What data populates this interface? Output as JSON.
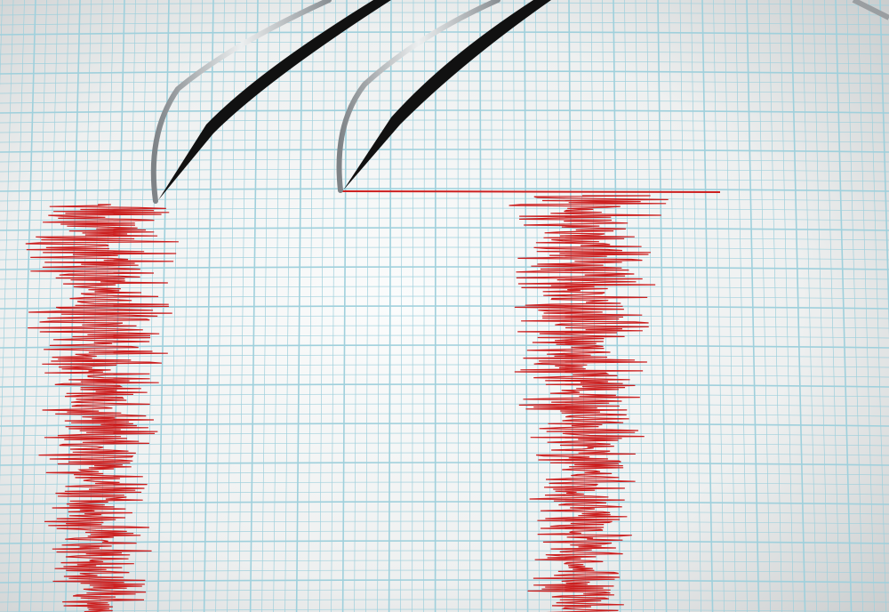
{
  "colors": {
    "paper": "#f4f6f6",
    "paper_edge": "#c9cccd",
    "grid_line": "#9fd0dc",
    "trace": "#cc1f1f",
    "needle": "#b8bcbf",
    "needle_shadow": "#111111"
  }
}
